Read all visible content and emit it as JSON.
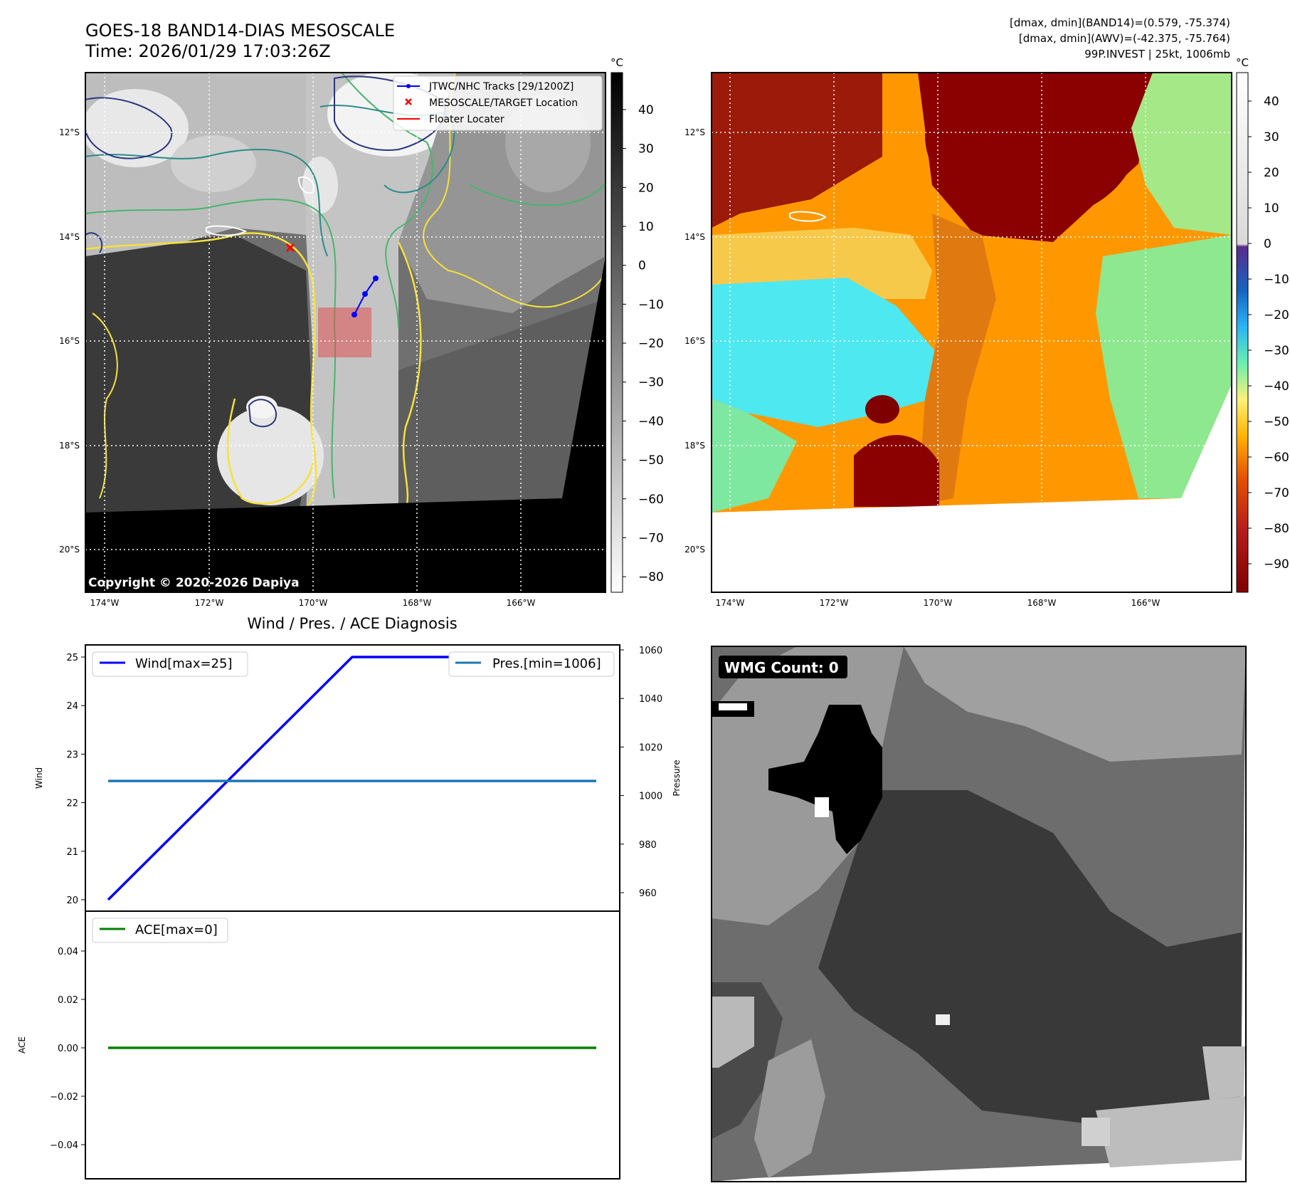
{
  "header": {
    "title": "GOES-18 BAND14-DIAS MESOSCALE",
    "time": "Time: 2026/01/29 17:03:26Z",
    "stat_band14": "[dmax, dmin](BAND14)=(0.579, -75.374)",
    "stat_awv": "[dmax, dmin](AWV)=(-42.375, -75.764)",
    "storm_info": "99P.INVEST | 25kt, 1006mb"
  },
  "maps": {
    "lat_labels": [
      "12°S",
      "14°S",
      "16°S",
      "18°S",
      "20°S"
    ],
    "lon_labels": [
      "174°W",
      "172°W",
      "170°W",
      "168°W",
      "166°W"
    ],
    "copyright": "Copyright © 2020-2026 Dapiya",
    "legend": {
      "tracks": "JTWC/NHC Tracks [29/1200Z]",
      "target": "MESOSCALE/TARGET Location",
      "floater": "Floater Locater"
    },
    "colorbar_unit": "°C",
    "band14_colorbar_ticks": [
      "40",
      "30",
      "20",
      "10",
      "0",
      "−10",
      "−20",
      "−30",
      "−40",
      "−50",
      "−60",
      "−70",
      "−80"
    ],
    "awv_colorbar_ticks": [
      "40",
      "30",
      "20",
      "10",
      "0",
      "−10",
      "−20",
      "−30",
      "−40",
      "−50",
      "−60",
      "−70",
      "−80",
      "−90"
    ],
    "colors": {
      "track": "#0000ff",
      "target": "#ff0000",
      "floater": "#ff0000",
      "contour_yellow": "#f5e13a",
      "contour_green": "#48b56b",
      "contour_teal": "#2a8c8a",
      "contour_navy": "#2b3680"
    }
  },
  "diag": {
    "title": "Wind / Pres. / ACE Diagnosis",
    "wmg_label": "WMG Count: 0"
  },
  "chart_data": [
    {
      "type": "line",
      "title": "Wind / Pres. / ACE Diagnosis",
      "x": [
        0,
        1,
        2
      ],
      "series": [
        {
          "name": "Wind[max=25]",
          "axis": "left",
          "values": [
            20,
            25,
            25
          ],
          "color": "#0000ff"
        },
        {
          "name": "Pres.[min=1006]",
          "axis": "right",
          "values": [
            1006,
            1006,
            1006
          ],
          "color": "#1f77b4"
        }
      ],
      "ylabel": "Wind",
      "y2label": "Pressure",
      "yticks": [
        "20",
        "21",
        "22",
        "23",
        "24",
        "25"
      ],
      "y2ticks": [
        "960",
        "980",
        "1000",
        "1020",
        "1040",
        "1060"
      ],
      "ylim": [
        20,
        25
      ],
      "y2lim": [
        950,
        1060
      ],
      "legend": [
        "upper-left",
        "upper-right"
      ]
    },
    {
      "type": "line",
      "x": [
        0,
        1,
        2
      ],
      "series": [
        {
          "name": "ACE[max=0]",
          "values": [
            0,
            0,
            0
          ],
          "color": "#008000"
        }
      ],
      "ylabel": "ACE",
      "yticks": [
        "0.04",
        "0.02",
        "0.00",
        "−0.02",
        "−0.04"
      ],
      "ylim": [
        -0.055,
        0.055
      ],
      "legend": "upper-left"
    }
  ]
}
